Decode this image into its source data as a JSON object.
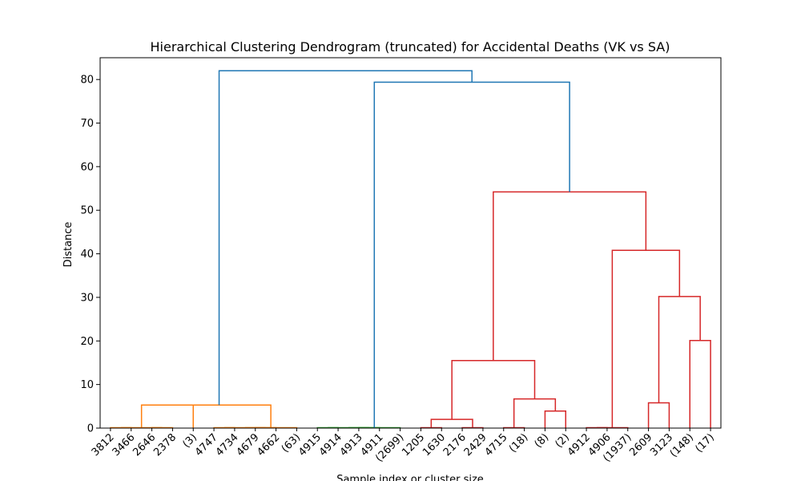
{
  "chart_data": {
    "type": "dendrogram",
    "title": "Hierarchical Clustering Dendrogram (truncated) for Accidental Deaths (VK vs SA)",
    "xlabel": "Sample index or cluster size",
    "ylabel": "Distance",
    "ylim": [
      0,
      85
    ],
    "yticks": [
      0,
      10,
      20,
      30,
      40,
      50,
      60,
      70,
      80
    ],
    "grid": false,
    "leaves": [
      "3812",
      "3466",
      "2646",
      "2378",
      "(3)",
      "4747",
      "4734",
      "4679",
      "4662",
      "(63)",
      "4915",
      "4914",
      "4913",
      "4911",
      "(2699)",
      "1205",
      "1630",
      "2176",
      "2429",
      "4715",
      "(18)",
      "(8)",
      "(2)",
      "4912",
      "4906",
      "(1937)",
      "2609",
      "3123",
      "(148)",
      "(17)"
    ],
    "colors": {
      "orange": "#ff7f0e",
      "green": "#2ca02c",
      "red": "#d62728",
      "blue": "#1f77b4"
    },
    "links": [
      {
        "left": "leaf:0",
        "right": "leaf:1",
        "height": 0.1,
        "color": "orange"
      },
      {
        "left": "leaf:2",
        "right": "leaf:3",
        "height": 0.1,
        "color": "orange"
      },
      {
        "left": "link:0",
        "right": "link:1",
        "height": 0.1,
        "color": "orange"
      },
      {
        "left": "link:2",
        "right": "leaf:4",
        "height": 5.3,
        "color": "orange"
      },
      {
        "left": "leaf:5",
        "right": "leaf:6",
        "height": 0.1,
        "color": "orange"
      },
      {
        "left": "leaf:7",
        "right": "leaf:8",
        "height": 0.1,
        "color": "orange"
      },
      {
        "left": "link:4",
        "right": "link:5",
        "height": 0.1,
        "color": "orange"
      },
      {
        "left": "link:6",
        "right": "leaf:9",
        "height": 0.1,
        "color": "orange"
      },
      {
        "left": "link:3",
        "right": "link:7",
        "height": 5.3,
        "color": "orange"
      },
      {
        "left": "leaf:10",
        "right": "leaf:11",
        "height": 0.1,
        "color": "green"
      },
      {
        "left": "leaf:12",
        "right": "leaf:13",
        "height": 0.1,
        "color": "green"
      },
      {
        "left": "link:9",
        "right": "link:10",
        "height": 0.1,
        "color": "green"
      },
      {
        "left": "link:11",
        "right": "leaf:14",
        "height": 0.1,
        "color": "green"
      },
      {
        "left": "leaf:15",
        "right": "leaf:16",
        "height": 0.1,
        "color": "red"
      },
      {
        "left": "leaf:17",
        "right": "leaf:18",
        "height": 0.1,
        "color": "red"
      },
      {
        "left": "link:13",
        "right": "link:14",
        "height": 2.0,
        "color": "red"
      },
      {
        "left": "leaf:19",
        "right": "leaf:20",
        "height": 0.1,
        "color": "red"
      },
      {
        "left": "leaf:21",
        "right": "leaf:22",
        "height": 3.9,
        "color": "red"
      },
      {
        "left": "link:16",
        "right": "link:17",
        "height": 6.7,
        "color": "red"
      },
      {
        "left": "link:15",
        "right": "link:18",
        "height": 15.5,
        "color": "red"
      },
      {
        "left": "leaf:23",
        "right": "leaf:24",
        "height": 0.1,
        "color": "red"
      },
      {
        "left": "link:20",
        "right": "leaf:25",
        "height": 0.1,
        "color": "red"
      },
      {
        "left": "leaf:26",
        "right": "leaf:27",
        "height": 5.8,
        "color": "red"
      },
      {
        "left": "leaf:28",
        "right": "leaf:29",
        "height": 20.1,
        "color": "red"
      },
      {
        "left": "link:22",
        "right": "link:23",
        "height": 30.2,
        "color": "red"
      },
      {
        "left": "link:21",
        "right": "link:24",
        "height": 40.8,
        "color": "red"
      },
      {
        "left": "link:19",
        "right": "link:25",
        "height": 54.2,
        "color": "red"
      },
      {
        "left": "link:12",
        "right": "link:26",
        "height": 79.4,
        "color": "blue"
      },
      {
        "left": "link:8",
        "right": "link:27",
        "height": 82.0,
        "color": "blue"
      }
    ]
  }
}
